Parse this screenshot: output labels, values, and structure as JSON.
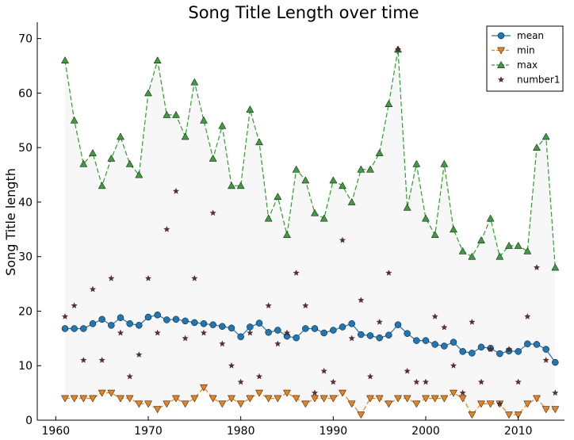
{
  "chart_data": {
    "type": "line",
    "title": "Song Title Length over time",
    "xlabel": "",
    "ylabel": "Song Title length",
    "xlim": [
      1958,
      2015
    ],
    "ylim": [
      0,
      73
    ],
    "xticks": [
      1960,
      1970,
      1980,
      1990,
      2000,
      2010
    ],
    "yticks": [
      0,
      10,
      20,
      30,
      40,
      50,
      60,
      70
    ],
    "grid": false,
    "legend_position": "top-right",
    "fill_between": {
      "lower": "min",
      "upper": "max",
      "color": "#f7f7f7"
    },
    "x": [
      1961,
      1962,
      1963,
      1964,
      1965,
      1966,
      1967,
      1968,
      1969,
      1970,
      1971,
      1972,
      1973,
      1974,
      1975,
      1976,
      1977,
      1978,
      1979,
      1980,
      1981,
      1982,
      1983,
      1984,
      1985,
      1986,
      1987,
      1988,
      1989,
      1990,
      1991,
      1992,
      1993,
      1994,
      1995,
      1996,
      1997,
      1998,
      1999,
      2000,
      2001,
      2002,
      2003,
      2004,
      2005,
      2006,
      2007,
      2008,
      2009,
      2010,
      2011,
      2012,
      2013,
      2014
    ],
    "series": [
      {
        "name": "mean",
        "marker": "circle",
        "linestyle": "solid",
        "line_color": "#1f77b4",
        "marker_color": "#1f77b4",
        "values": [
          16.8,
          16.8,
          16.8,
          17.7,
          18.5,
          17.4,
          18.8,
          17.7,
          17.4,
          18.9,
          19.3,
          18.4,
          18.5,
          18.2,
          17.9,
          17.7,
          17.5,
          17.2,
          16.9,
          15.3,
          17.1,
          17.8,
          16.1,
          16.5,
          15.4,
          15.1,
          16.8,
          16.8,
          16.0,
          16.5,
          17.1,
          17.7,
          15.7,
          15.5,
          15.1,
          15.6,
          17.5,
          15.9,
          14.6,
          14.6,
          13.9,
          13.6,
          14.3,
          12.6,
          12.3,
          13.4,
          13.2,
          12.2,
          12.7,
          12.6,
          14.0,
          13.9,
          13.0,
          10.6
        ]
      },
      {
        "name": "min",
        "marker": "triangle-down",
        "linestyle": "dashed",
        "line_color": "#ff7f0e",
        "marker_color": "#e8821c",
        "values": [
          4,
          4,
          4,
          4,
          5,
          5,
          4,
          4,
          3,
          3,
          2,
          3,
          4,
          3,
          4,
          6,
          4,
          3,
          4,
          3,
          4,
          5,
          4,
          4,
          5,
          4,
          3,
          4,
          4,
          4,
          5,
          3,
          1,
          4,
          4,
          3,
          4,
          4,
          3,
          4,
          4,
          4,
          5,
          4,
          1,
          3,
          3,
          3,
          1,
          1,
          3,
          4,
          2,
          2
        ]
      },
      {
        "name": "max",
        "marker": "triangle-up",
        "linestyle": "dashed",
        "line_color": "#2ca02c",
        "marker_color": "#3d9c3d",
        "values": [
          66,
          55,
          47,
          49,
          43,
          48,
          52,
          47,
          45,
          60,
          66,
          56,
          56,
          52,
          62,
          55,
          48,
          54,
          43,
          43,
          57,
          51,
          37,
          41,
          34,
          46,
          44,
          38,
          37,
          44,
          43,
          40,
          46,
          46,
          49,
          58,
          68,
          39,
          47,
          37,
          34,
          47,
          35,
          31,
          30,
          33,
          37,
          30,
          32,
          32,
          31,
          50,
          52,
          28
        ]
      },
      {
        "name": "number1",
        "marker": "star",
        "linestyle": "none",
        "marker_color": "#6b2a2a",
        "values": [
          19,
          21,
          11,
          24,
          11,
          26,
          16,
          8,
          12,
          26,
          16,
          35,
          42,
          15,
          26,
          16,
          38,
          14,
          10,
          7,
          16,
          8,
          21,
          14,
          16,
          27,
          21,
          5,
          9,
          7,
          33,
          15,
          22,
          8,
          18,
          27,
          68,
          9,
          7,
          7,
          19,
          17,
          10,
          5,
          18,
          7,
          13,
          3,
          13,
          7,
          19,
          28,
          11,
          5
        ]
      }
    ]
  }
}
